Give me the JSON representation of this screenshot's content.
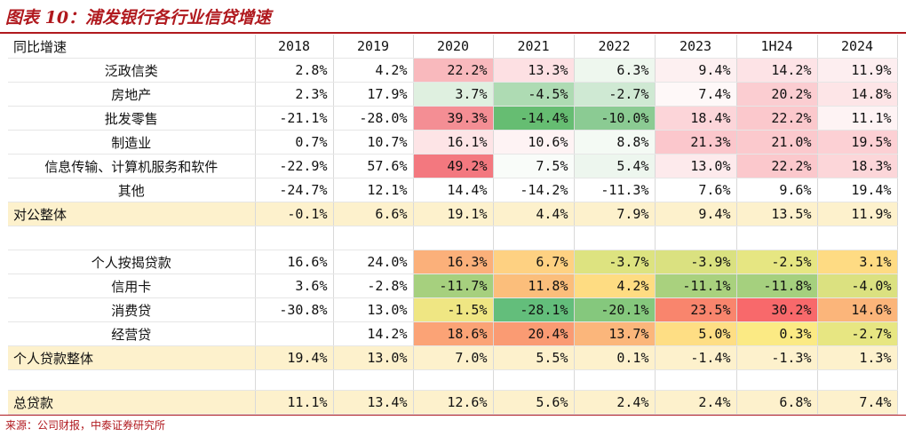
{
  "title": "图表 10：浦发银行各行业信贷增速",
  "source": "来源：公司财报，中泰证券研究所",
  "header": {
    "label": "同比增速",
    "columns": [
      "2018",
      "2019",
      "2020",
      "2021",
      "2022",
      "2023",
      "1H24",
      "2024"
    ]
  },
  "rows": [
    {
      "label": "泛政信类",
      "type": "sub",
      "values": [
        "2.8%",
        "4.2%",
        "22.2%",
        "13.3%",
        "6.3%",
        "9.4%",
        "14.2%",
        "11.9%"
      ],
      "colors": [
        "",
        "",
        "#f9b9bd",
        "#fde0e3",
        "#eef7ee",
        "#fdf0f1",
        "#fde3e6",
        "#fdeef0"
      ]
    },
    {
      "label": "房地产",
      "type": "sub",
      "values": [
        "2.3%",
        "17.9%",
        "3.7%",
        "-4.5%",
        "-2.7%",
        "7.4%",
        "20.2%",
        "14.8%"
      ],
      "colors": [
        "",
        "",
        "#dff0e0",
        "#aedbb3",
        "#cfe9d3",
        "#fef8f8",
        "#fbcdd1",
        "#fde5e7"
      ]
    },
    {
      "label": "批发零售",
      "type": "sub",
      "values": [
        "-21.1%",
        "-28.0%",
        "39.3%",
        "-14.4%",
        "-10.0%",
        "18.4%",
        "22.2%",
        "11.1%"
      ],
      "colors": [
        "",
        "",
        "#f48e94",
        "#66bd72",
        "#8bcb93",
        "#fcd5d9",
        "#fbc8cc",
        "#fef3f4"
      ]
    },
    {
      "label": "制造业",
      "type": "sub",
      "values": [
        "0.7%",
        "10.7%",
        "16.1%",
        "10.6%",
        "8.8%",
        "21.3%",
        "21.0%",
        "19.5%"
      ],
      "colors": [
        "",
        "",
        "#fde4e6",
        "#fef3f4",
        "#f4faf4",
        "#fbc7cc",
        "#fbc9cd",
        "#fcd0d4"
      ]
    },
    {
      "label": "信息传输、计算机服务和软件",
      "type": "sub",
      "values": [
        "-22.9%",
        "57.6%",
        "49.2%",
        "7.5%",
        "5.4%",
        "13.0%",
        "22.2%",
        "18.3%"
      ],
      "colors": [
        "",
        "",
        "#f3787f",
        "#f9fcf9",
        "#edf6ee",
        "#fdeaec",
        "#fbc8cc",
        "#fcd6d9"
      ]
    },
    {
      "label": "其他",
      "type": "sub",
      "values": [
        "-24.7%",
        "12.1%",
        "14.4%",
        "-14.2%",
        "-11.3%",
        "7.6%",
        "9.6%",
        "19.4%"
      ],
      "colors": [
        "",
        "",
        "",
        "",
        "",
        "",
        "",
        ""
      ]
    },
    {
      "label": "对公整体",
      "type": "total",
      "values": [
        "-0.1%",
        "6.6%",
        "19.1%",
        "4.4%",
        "7.9%",
        "9.4%",
        "13.5%",
        "11.9%"
      ],
      "colors": [
        "",
        "",
        "",
        "",
        "",
        "",
        "",
        ""
      ]
    },
    {
      "label": "",
      "type": "blank",
      "values": [
        "",
        "",
        "",
        "",
        "",
        "",
        "",
        ""
      ],
      "colors": [
        "",
        "",
        "",
        "",
        "",
        "",
        "",
        ""
      ]
    },
    {
      "label": "个人按揭贷款",
      "type": "sub",
      "values": [
        "16.6%",
        "24.0%",
        "16.3%",
        "6.7%",
        "-3.7%",
        "-3.9%",
        "-2.5%",
        "3.1%"
      ],
      "colors": [
        "",
        "",
        "#fbb07a",
        "#fed182",
        "#dde380",
        "#dae180",
        "#e6e682",
        "#fedb83"
      ]
    },
    {
      "label": "信用卡",
      "type": "sub",
      "values": [
        "3.6%",
        "-2.8%",
        "-11.7%",
        "11.8%",
        "4.2%",
        "-11.1%",
        "-11.8%",
        "-4.0%"
      ],
      "colors": [
        "",
        "",
        "#a6d07e",
        "#fbbe7b",
        "#fedc82",
        "#a9d17e",
        "#a5d07e",
        "#dbe180"
      ]
    },
    {
      "label": "消费贷",
      "type": "sub",
      "values": [
        "-30.8%",
        "13.0%",
        "-1.5%",
        "-28.1%",
        "-20.1%",
        "23.5%",
        "30.2%",
        "14.6%"
      ],
      "colors": [
        "",
        "",
        "#efe683",
        "#63be7b",
        "#85c87d",
        "#f9856d",
        "#f8696b",
        "#fbb57a"
      ]
    },
    {
      "label": "经营贷",
      "type": "sub",
      "values": [
        "",
        "14.2%",
        "18.6%",
        "20.4%",
        "13.7%",
        "5.0%",
        "0.3%",
        "-2.7%"
      ],
      "colors": [
        "",
        "",
        "#fba376",
        "#fa9b73",
        "#fbb67b",
        "#fede84",
        "#fbea84",
        "#e7e682"
      ]
    },
    {
      "label": "个人贷款整体",
      "type": "total",
      "values": [
        "19.4%",
        "13.0%",
        "7.0%",
        "5.5%",
        "0.1%",
        "-1.4%",
        "-1.3%",
        "1.3%"
      ],
      "colors": [
        "",
        "",
        "",
        "",
        "",
        "",
        "",
        ""
      ]
    },
    {
      "label": "",
      "type": "gap",
      "values": [
        "",
        "",
        "",
        "",
        "",
        "",
        "",
        ""
      ],
      "colors": [
        "",
        "",
        "",
        "",
        "",
        "",
        "",
        ""
      ]
    },
    {
      "label": "总贷款",
      "type": "total",
      "values": [
        "11.1%",
        "13.4%",
        "12.6%",
        "5.6%",
        "2.4%",
        "2.4%",
        "6.8%",
        "7.4%"
      ],
      "colors": [
        "",
        "",
        "",
        "",
        "",
        "",
        "",
        ""
      ]
    }
  ]
}
